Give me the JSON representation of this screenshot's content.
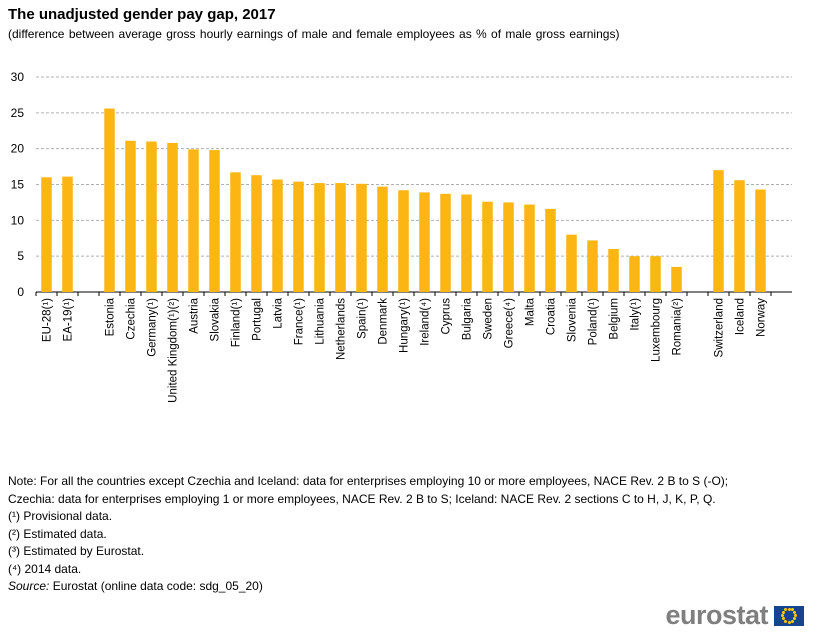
{
  "chart_data": {
    "type": "bar",
    "title": "The unadjusted gender pay gap, 2017",
    "subtitle": "(difference between average gross hourly earnings of male and female employees as % of male gross earnings)",
    "ylim": [
      0,
      30
    ],
    "yticks": [
      0,
      5,
      10,
      15,
      20,
      25,
      30
    ],
    "grid": true,
    "bar_color": "#fbb614",
    "groups": [
      {
        "categories": [
          "EU-28(¹)",
          "EA-19(¹)"
        ],
        "values": [
          16.0,
          16.1
        ]
      },
      {
        "categories": [
          "Estonia",
          "Czechia",
          "Germany(¹)",
          "United Kingdom(¹)(²)",
          "Austria",
          "Slovakia",
          "Finland(¹)",
          "Portugal",
          "Latvia",
          "France(¹)",
          "Lithuania",
          "Netherlands",
          "Spain(¹)",
          "Denmark",
          "Hungary(¹)",
          "Ireland(⁴)",
          "Cyprus",
          "Bulgaria",
          "Sweden",
          "Greece(⁴)",
          "Malta",
          "Croatia",
          "Slovenia",
          "Poland(¹)",
          "Belgium",
          "Italy(¹)",
          "Luxembourg",
          "Romania(²)"
        ],
        "values": [
          25.6,
          21.1,
          21.0,
          20.8,
          19.9,
          19.8,
          16.7,
          16.3,
          15.7,
          15.4,
          15.2,
          15.2,
          15.1,
          14.7,
          14.2,
          13.9,
          13.7,
          13.6,
          12.6,
          12.5,
          12.2,
          11.6,
          8.0,
          7.2,
          6.0,
          5.0,
          5.0,
          3.5
        ]
      },
      {
        "categories": [
          "Switzerland",
          "Iceland",
          "Norway"
        ],
        "values": [
          17.0,
          15.6,
          14.3
        ]
      }
    ]
  },
  "notes": {
    "line1": "Note: For all the countries except Czechia and Iceland: data for enterprises employing 10 or more employees, NACE Rev. 2 B to S (-O);",
    "line2": "Czechia: data for enterprises employing 1 or more employees, NACE Rev. 2 B to S; Iceland: NACE Rev. 2 sections C to H, J, K, P, Q.",
    "f1": "(¹) Provisional data.",
    "f2": "(²) Estimated data.",
    "f3": "(³) Estimated by Eurostat.",
    "f4": "(⁴) 2014 data.",
    "source_label": "Source:",
    "source_text": " Eurostat (online data code: sdg_05_20)"
  },
  "logo": {
    "text": "eurostat"
  }
}
